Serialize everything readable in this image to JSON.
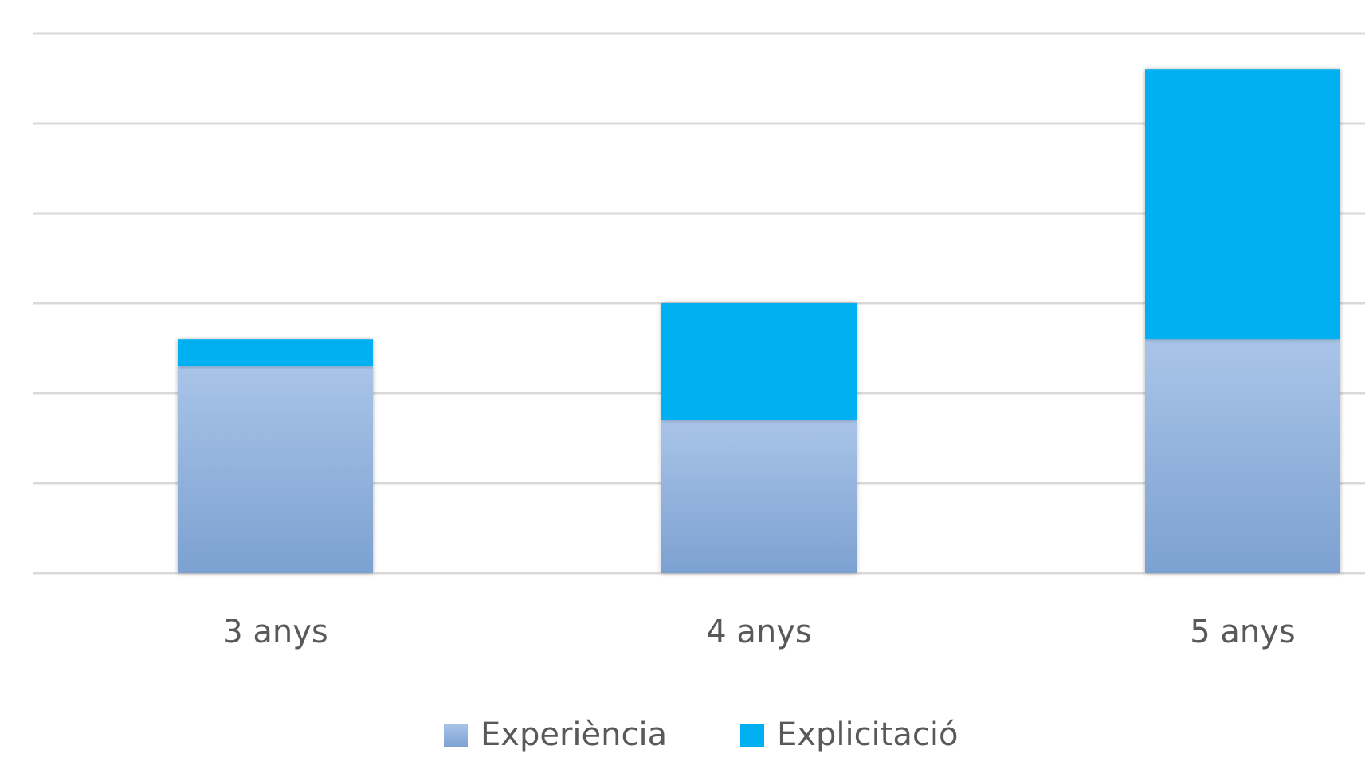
{
  "chart_data": {
    "type": "stacked_bar",
    "categories": [
      "3 anys",
      "4 anys",
      "5 anys"
    ],
    "series": [
      {
        "name": "Experiència",
        "color": "#94b4df",
        "values": [
          2.3,
          1.7,
          2.6
        ]
      },
      {
        "name": "Explicitació",
        "color": "#00b0f0",
        "values": [
          0.3,
          1.3,
          3.0
        ]
      }
    ],
    "ylim": [
      0,
      6
    ],
    "yticks": [
      0,
      1,
      2,
      3,
      4,
      5,
      6
    ],
    "grid": true,
    "legend": "bottom"
  }
}
